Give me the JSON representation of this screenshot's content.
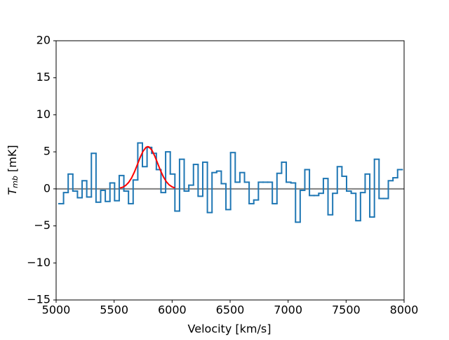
{
  "chart_data": {
    "type": "step",
    "xlabel": "Velocity [km/s]",
    "ylabel": {
      "main": "T",
      "sub": "mb",
      "unit": " [mK]"
    },
    "xlim": [
      5000,
      8000
    ],
    "ylim": [
      -15,
      20
    ],
    "xticks": [
      5000,
      5500,
      6000,
      6500,
      7000,
      7500,
      8000
    ],
    "yticks": [
      {
        "value": -15,
        "label": "−15"
      },
      {
        "value": -10,
        "label": "−10"
      },
      {
        "value": -5,
        "label": "−5"
      },
      0,
      5,
      10,
      15,
      20
    ],
    "hline": {
      "value": 0,
      "color": "#808080"
    },
    "series": [
      {
        "kind": "step",
        "color": "#1f77b4",
        "x": [
          5044,
          5084,
          5124,
          5164,
          5204,
          5244,
          5284,
          5324,
          5364,
          5404,
          5444,
          5484,
          5524,
          5564,
          5604,
          5644,
          5684,
          5724,
          5764,
          5804,
          5844,
          5884,
          5924,
          5964,
          6004,
          6044,
          6084,
          6124,
          6164,
          6204,
          6244,
          6284,
          6324,
          6364,
          6404,
          6444,
          6484,
          6524,
          6564,
          6604,
          6644,
          6684,
          6724,
          6764,
          6804,
          6844,
          6884,
          6924,
          6964,
          7004,
          7044,
          7084,
          7124,
          7164,
          7204,
          7244,
          7284,
          7324,
          7364,
          7404,
          7444,
          7484,
          7524,
          7564,
          7604,
          7644,
          7684,
          7724,
          7764,
          7804,
          7844,
          7884,
          7924,
          7964
        ],
        "values": [
          -2,
          -0.5,
          2,
          -0.3,
          -1.2,
          1.1,
          -1.1,
          4.8,
          -1.8,
          -0.2,
          -1.7,
          0.8,
          -1.6,
          1.8,
          -0.3,
          -2,
          1.2,
          6.2,
          3,
          5.6,
          4.8,
          2.6,
          -0.5,
          5,
          2,
          -3,
          4,
          -0.3,
          0.5,
          3.3,
          -1,
          3.6,
          -3.2,
          2.2,
          2.4,
          0.7,
          -2.8,
          4.9,
          0.9,
          2.2,
          0.9,
          -2,
          -1.5,
          0.9,
          0.9,
          0.9,
          -2,
          2.1,
          3.6,
          0.9,
          0.8,
          -4.5,
          -0.2,
          2.6,
          -0.9,
          -0.9,
          -0.6,
          1.4,
          -3.5,
          -0.6,
          3,
          1.7,
          -0.3,
          -0.6,
          -4.3,
          -0.5,
          2,
          -3.8,
          4,
          -1.3,
          -1.3,
          1.1,
          1.5,
          2.6
        ]
      },
      {
        "kind": "line",
        "color": "#ff0000",
        "x": [
          5550,
          5575,
          5600,
          5625,
          5650,
          5675,
          5700,
          5725,
          5750,
          5775,
          5790,
          5800,
          5825,
          5850,
          5875,
          5900,
          5925,
          5950,
          5975,
          6000,
          6025
        ],
        "values": [
          0.11,
          0.23,
          0.47,
          0.87,
          1.46,
          2.28,
          3.26,
          4.26,
          5.1,
          5.61,
          5.7,
          5.66,
          5.24,
          4.44,
          3.46,
          2.47,
          1.62,
          0.97,
          0.53,
          0.27,
          0.12
        ]
      }
    ]
  }
}
